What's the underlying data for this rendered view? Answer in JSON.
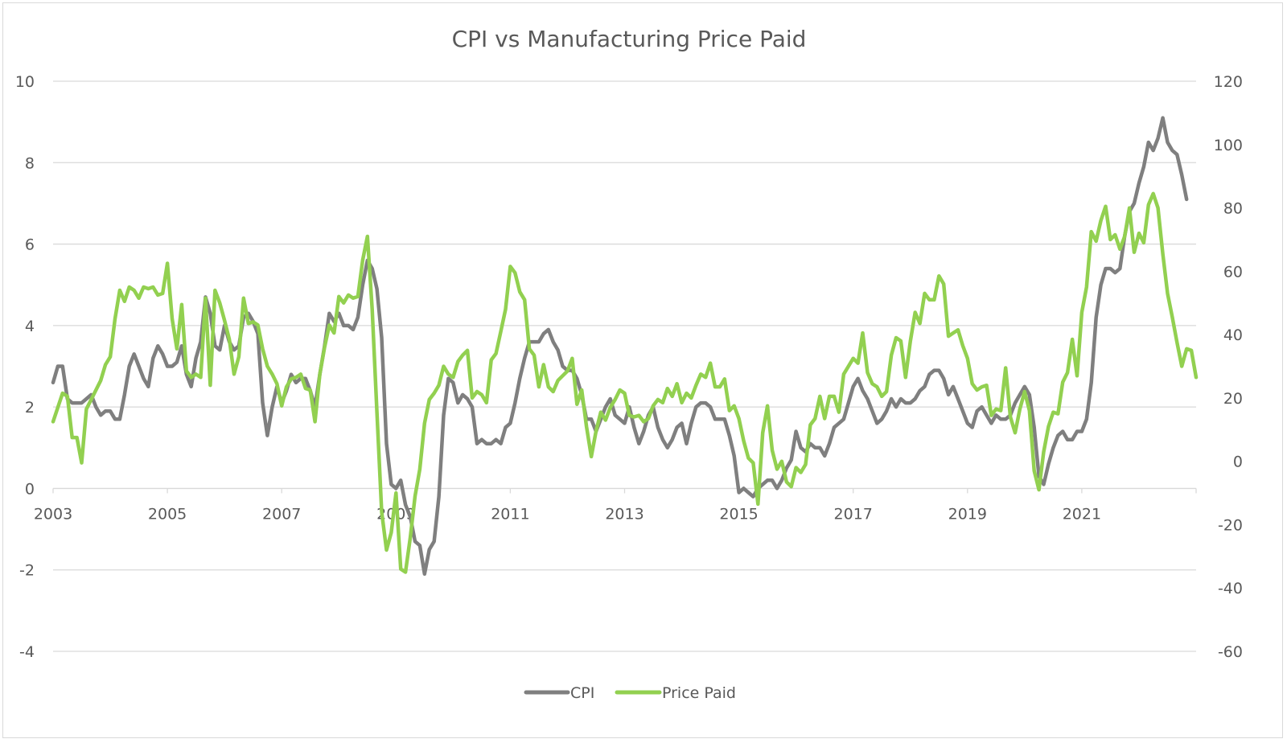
{
  "chart_data": {
    "type": "line",
    "title": "CPI vs Manufacturing Price Paid",
    "xlabel": "",
    "ylabel": "",
    "y2label": "",
    "x_start": "2003-01",
    "x_frequency": "monthly",
    "x_tick_labels": [
      "2003",
      "2005",
      "2007",
      "2009",
      "2011",
      "2013",
      "2015",
      "2017",
      "2019",
      "2021"
    ],
    "xlim": [
      2003,
      2023
    ],
    "ylim": [
      -4,
      10
    ],
    "y_ticks": [
      10,
      8,
      6,
      4,
      2,
      0,
      -2,
      -4
    ],
    "y2lim": [
      -60,
      120
    ],
    "y2_ticks": [
      120,
      100,
      80,
      60,
      40,
      20,
      0,
      -20,
      -40,
      -60
    ],
    "grid": true,
    "legend": "bottom",
    "series": [
      {
        "name": "CPI",
        "axis": "left",
        "color": "#7f7f7f",
        "values": [
          2.6,
          3.0,
          3.0,
          2.2,
          2.1,
          2.1,
          2.1,
          2.2,
          2.3,
          2.0,
          1.8,
          1.9,
          1.9,
          1.7,
          1.7,
          2.3,
          3.0,
          3.3,
          3.0,
          2.7,
          2.5,
          3.2,
          3.5,
          3.3,
          3.0,
          3.0,
          3.1,
          3.5,
          2.8,
          2.5,
          3.2,
          3.6,
          4.7,
          4.3,
          3.5,
          3.4,
          4.0,
          3.6,
          3.4,
          3.5,
          4.2,
          4.3,
          4.1,
          3.8,
          2.1,
          1.3,
          2.0,
          2.5,
          2.1,
          2.4,
          2.8,
          2.6,
          2.7,
          2.7,
          2.4,
          2.0,
          2.8,
          3.5,
          4.3,
          4.1,
          4.3,
          4.0,
          4.0,
          3.9,
          4.2,
          5.0,
          5.6,
          5.4,
          4.9,
          3.7,
          1.1,
          0.1,
          0.0,
          0.2,
          -0.4,
          -0.7,
          -1.3,
          -1.4,
          -2.1,
          -1.5,
          -1.3,
          -0.2,
          1.8,
          2.7,
          2.6,
          2.1,
          2.3,
          2.2,
          2.0,
          1.1,
          1.2,
          1.1,
          1.1,
          1.2,
          1.1,
          1.5,
          1.6,
          2.1,
          2.7,
          3.2,
          3.6,
          3.6,
          3.6,
          3.8,
          3.9,
          3.6,
          3.4,
          3.0,
          2.9,
          2.9,
          2.7,
          2.3,
          1.7,
          1.7,
          1.4,
          1.7,
          2.0,
          2.2,
          1.8,
          1.7,
          1.6,
          2.0,
          1.5,
          1.1,
          1.4,
          1.8,
          2.0,
          1.5,
          1.2,
          1.0,
          1.2,
          1.5,
          1.6,
          1.1,
          1.6,
          2.0,
          2.1,
          2.1,
          2.0,
          1.7,
          1.7,
          1.7,
          1.3,
          0.8,
          -0.1,
          0.0,
          -0.1,
          -0.2,
          0.0,
          0.1,
          0.2,
          0.2,
          0.0,
          0.2,
          0.5,
          0.7,
          1.4,
          1.0,
          0.9,
          1.1,
          1.0,
          1.0,
          0.8,
          1.1,
          1.5,
          1.6,
          1.7,
          2.1,
          2.5,
          2.7,
          2.4,
          2.2,
          1.9,
          1.6,
          1.7,
          1.9,
          2.2,
          2.0,
          2.2,
          2.1,
          2.1,
          2.2,
          2.4,
          2.5,
          2.8,
          2.9,
          2.9,
          2.7,
          2.3,
          2.5,
          2.2,
          1.9,
          1.6,
          1.5,
          1.9,
          2.0,
          1.8,
          1.6,
          1.8,
          1.7,
          1.7,
          1.8,
          2.1,
          2.3,
          2.5,
          2.3,
          1.5,
          0.3,
          0.1,
          0.6,
          1.0,
          1.3,
          1.4,
          1.2,
          1.2,
          1.4,
          1.4,
          1.7,
          2.6,
          4.2,
          5.0,
          5.4,
          5.4,
          5.3,
          5.4,
          6.2,
          6.8,
          7.0,
          7.5,
          7.9,
          8.5,
          8.3,
          8.6,
          9.1,
          8.5,
          8.3,
          8.2,
          7.7,
          7.1
        ]
      },
      {
        "name": "Price Paid",
        "axis": "right",
        "color": "#92d050",
        "values": [
          12.5,
          17.0,
          21.5,
          20.5,
          7.5,
          7.5,
          -0.5,
          16.5,
          19.5,
          22.5,
          25.5,
          30.5,
          33.0,
          45.0,
          54.0,
          50.5,
          55.0,
          54.0,
          51.5,
          55.0,
          54.5,
          55.0,
          52.5,
          53.0,
          62.5,
          45.0,
          35.5,
          49.5,
          28.5,
          26.5,
          27.5,
          26.5,
          51.5,
          24.0,
          54.0,
          50.0,
          44.5,
          38.5,
          27.5,
          33.0,
          51.5,
          43.5,
          44.0,
          43.0,
          35.5,
          30.0,
          27.5,
          24.5,
          17.5,
          23.5,
          26.0,
          26.5,
          27.5,
          23.0,
          22.5,
          12.5,
          27.5,
          36.0,
          43.0,
          40.5,
          52.0,
          50.0,
          52.5,
          51.5,
          52.0,
          63.5,
          71.0,
          48.0,
          15.5,
          -16.0,
          -28.0,
          -22.5,
          -10.0,
          -34.0,
          -35.0,
          -24.0,
          -11.0,
          -2.5,
          12.0,
          19.5,
          21.5,
          24.0,
          30.0,
          27.5,
          26.5,
          31.5,
          33.5,
          35.0,
          20.0,
          22.0,
          21.0,
          18.5,
          32.0,
          34.0,
          41.0,
          48.0,
          61.5,
          59.5,
          53.5,
          51.0,
          35.5,
          33.5,
          23.5,
          30.5,
          23.5,
          22.0,
          25.5,
          27.0,
          28.5,
          32.5,
          18.0,
          22.5,
          11.0,
          1.5,
          9.5,
          15.5,
          13.0,
          17.0,
          19.5,
          22.5,
          21.5,
          14.5,
          14.0,
          14.5,
          12.5,
          13.5,
          17.5,
          19.5,
          18.5,
          23.0,
          20.5,
          24.5,
          18.5,
          21.5,
          20.0,
          24.0,
          27.5,
          26.5,
          31.0,
          23.5,
          23.5,
          26.0,
          16.0,
          17.5,
          13.5,
          6.5,
          1.0,
          -0.5,
          -13.5,
          9.0,
          17.5,
          3.5,
          -2.5,
          0.0,
          -6.5,
          -8.0,
          -2.0,
          -3.5,
          -1.0,
          11.5,
          13.5,
          20.5,
          13.5,
          20.5,
          20.5,
          15.5,
          27.5,
          30.0,
          32.5,
          31.0,
          40.5,
          28.0,
          24.5,
          23.5,
          20.5,
          22.0,
          33.5,
          39.0,
          38.0,
          26.5,
          38.0,
          47.0,
          43.5,
          53.0,
          51.0,
          51.0,
          58.5,
          56.0,
          39.5,
          40.5,
          41.5,
          36.5,
          32.5,
          24.5,
          22.5,
          23.5,
          24.0,
          14.5,
          16.5,
          16.0,
          29.5,
          14.0,
          9.0,
          16.5,
          22.0,
          16.0,
          -3.0,
          -9.0,
          3.0,
          11.0,
          15.5,
          15.0,
          25.0,
          28.0,
          38.5,
          27.0,
          47.0,
          55.0,
          72.5,
          69.5,
          76.0,
          80.5,
          70.0,
          71.5,
          67.0,
          71.0,
          80.0,
          66.0,
          72.0,
          69.0,
          81.0,
          84.5,
          80.0,
          65.5,
          53.0,
          45.5,
          37.5,
          30.0,
          35.5,
          35.0,
          26.5
        ]
      }
    ]
  }
}
